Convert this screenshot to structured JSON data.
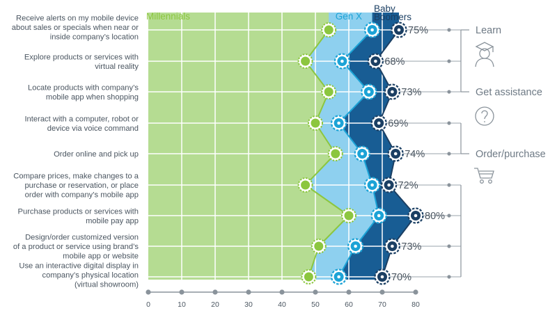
{
  "chart_data": {
    "type": "line",
    "orientation": "horizontal",
    "xlim": [
      0,
      80
    ],
    "x_ticks": [
      0,
      10,
      20,
      30,
      40,
      50,
      60,
      70,
      80
    ],
    "grid": true,
    "legend": "top",
    "categories": [
      [
        "Receive alerts on my mobile device",
        "about sales or specials when near or",
        "inside company’s location"
      ],
      [
        "Explore products or services with",
        "virtual reality"
      ],
      [
        "Locate products with company’s",
        "mobile app when shopping"
      ],
      [
        "Interact with a computer, robot or",
        "device via voice command"
      ],
      [
        "Order online and pick up"
      ],
      [
        "Compare prices, make changes to a",
        "purchase or reservation, or place",
        "order with company’s mobile app"
      ],
      [
        "Purchase products or services with",
        "mobile pay app"
      ],
      [
        "Design/order customized version",
        "of a product or service using brand’s",
        "mobile app or website"
      ],
      [
        "Use an interactive digital display in",
        "company’s physical location",
        "(virtual showroom)"
      ]
    ],
    "series": [
      {
        "name": "Millennials",
        "color": "#8cc63f",
        "fill": "#b5dc92",
        "values": [
          54,
          47,
          54,
          50,
          56,
          47,
          60,
          51,
          48
        ]
      },
      {
        "name": "Gen X",
        "color": "#1ca3d6",
        "fill": "#8ed0ef",
        "values": [
          67,
          58,
          66,
          57,
          64,
          67,
          69,
          62,
          57
        ]
      },
      {
        "name": [
          "Baby",
          "Boomers"
        ],
        "color": "#1b3f63",
        "fill": "#185d94",
        "values": [
          75,
          68,
          73,
          69,
          74,
          72,
          80,
          73,
          70
        ]
      }
    ],
    "value_labels": [
      "75%",
      "68%",
      "73%",
      "69%",
      "74%",
      "72%",
      "80%",
      "73%",
      "70%"
    ],
    "groups": [
      {
        "label": "Learn",
        "icon": "graduate-icon"
      },
      {
        "label": "Get assistance",
        "icon": "question-icon"
      },
      {
        "label": "Order/purchase",
        "icon": "cart-icon"
      }
    ]
  }
}
